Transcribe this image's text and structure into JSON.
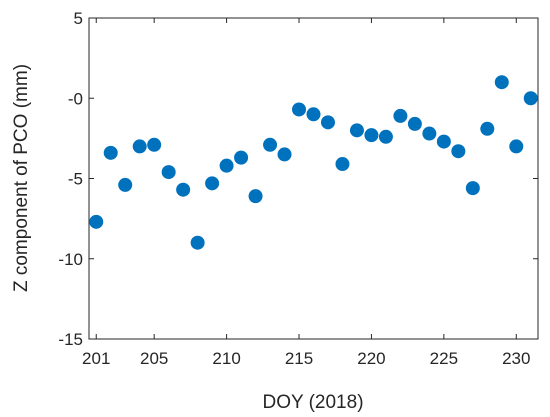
{
  "chart_data": {
    "type": "scatter",
    "xlabel": "DOY (2018)",
    "ylabel": "Z component of PCO (mm)",
    "xlim": [
      200.5,
      231.5
    ],
    "ylim": [
      -15,
      5
    ],
    "xticks": [
      201,
      205,
      210,
      215,
      220,
      225,
      230
    ],
    "yticks": [
      5,
      0,
      -5,
      -10,
      -15
    ],
    "ytick_labels": [
      "5",
      "-0",
      "-5",
      "-10",
      "-15"
    ],
    "grid": false,
    "marker_color": "#0072BD",
    "series": [
      {
        "x": [
          201,
          202,
          203,
          204,
          205,
          206,
          207,
          208,
          209,
          210,
          211,
          212,
          213,
          214,
          215,
          216,
          217,
          218,
          219,
          220,
          221,
          222,
          223,
          224,
          225,
          226,
          227,
          228,
          229,
          230,
          231
        ],
        "y": [
          -7.7,
          -3.4,
          -5.4,
          -3.0,
          -2.9,
          -4.6,
          -5.7,
          -9.0,
          -5.3,
          -4.2,
          -3.7,
          -6.1,
          -2.9,
          -3.5,
          -0.7,
          -1.0,
          -1.5,
          -4.1,
          -2.0,
          -2.3,
          -2.4,
          -1.1,
          -1.6,
          -2.2,
          -2.7,
          -3.3,
          -5.6,
          -1.9,
          1.0,
          -3.0,
          0.0
        ]
      }
    ]
  }
}
